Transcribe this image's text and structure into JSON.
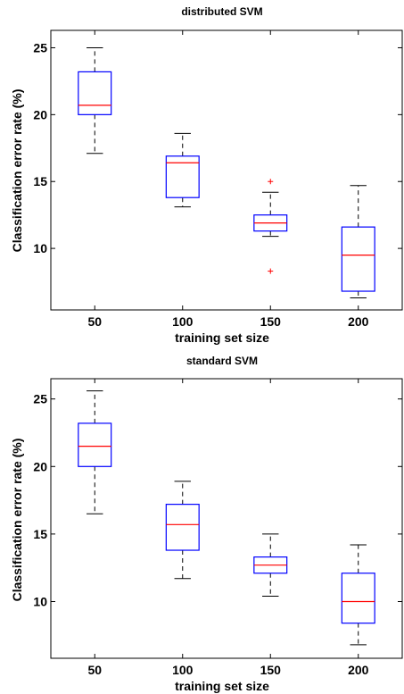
{
  "chart_data": [
    {
      "type": "boxplot",
      "title": "distributed SVM",
      "xlabel": "training set size",
      "ylabel": "Classification error rate (%)",
      "categories": [
        "50",
        "100",
        "150",
        "200"
      ],
      "yticks": [
        10,
        15,
        20,
        25
      ],
      "ylim": [
        5.4,
        26.3
      ],
      "boxes": [
        {
          "category": "50",
          "whisker_low": 17.1,
          "q1": 20.0,
          "median": 20.7,
          "q3": 23.2,
          "whisker_high": 25.0,
          "outliers": []
        },
        {
          "category": "100",
          "whisker_low": 13.1,
          "q1": 13.8,
          "median": 16.4,
          "q3": 16.9,
          "whisker_high": 18.6,
          "outliers": []
        },
        {
          "category": "150",
          "whisker_low": 10.9,
          "q1": 11.3,
          "median": 11.9,
          "q3": 12.5,
          "whisker_high": 14.2,
          "outliers": [
            15.0,
            8.3
          ]
        },
        {
          "category": "200",
          "whisker_low": 6.3,
          "q1": 6.8,
          "median": 9.5,
          "q3": 11.6,
          "whisker_high": 14.7,
          "outliers": []
        }
      ],
      "colors": {
        "box": "#0000ff",
        "median": "#ff0000",
        "whisker": "#000000",
        "outlier": "#ff0000"
      }
    },
    {
      "type": "boxplot",
      "title": "standard SVM",
      "xlabel": "training set size",
      "ylabel": "Classification error rate (%)",
      "categories": [
        "50",
        "100",
        "150",
        "200"
      ],
      "yticks": [
        10,
        15,
        20,
        25
      ],
      "ylim": [
        5.8,
        26.5
      ],
      "boxes": [
        {
          "category": "50",
          "whisker_low": 16.5,
          "q1": 20.0,
          "median": 21.5,
          "q3": 23.2,
          "whisker_high": 25.6,
          "outliers": []
        },
        {
          "category": "100",
          "whisker_low": 11.7,
          "q1": 13.8,
          "median": 15.7,
          "q3": 17.2,
          "whisker_high": 18.9,
          "outliers": []
        },
        {
          "category": "150",
          "whisker_low": 10.4,
          "q1": 12.1,
          "median": 12.7,
          "q3": 13.3,
          "whisker_high": 15.0,
          "outliers": []
        },
        {
          "category": "200",
          "whisker_low": 6.8,
          "q1": 8.4,
          "median": 10.0,
          "q3": 12.1,
          "whisker_high": 14.2,
          "outliers": []
        }
      ],
      "colors": {
        "box": "#0000ff",
        "median": "#ff0000",
        "whisker": "#000000",
        "outlier": "#ff0000"
      }
    }
  ]
}
